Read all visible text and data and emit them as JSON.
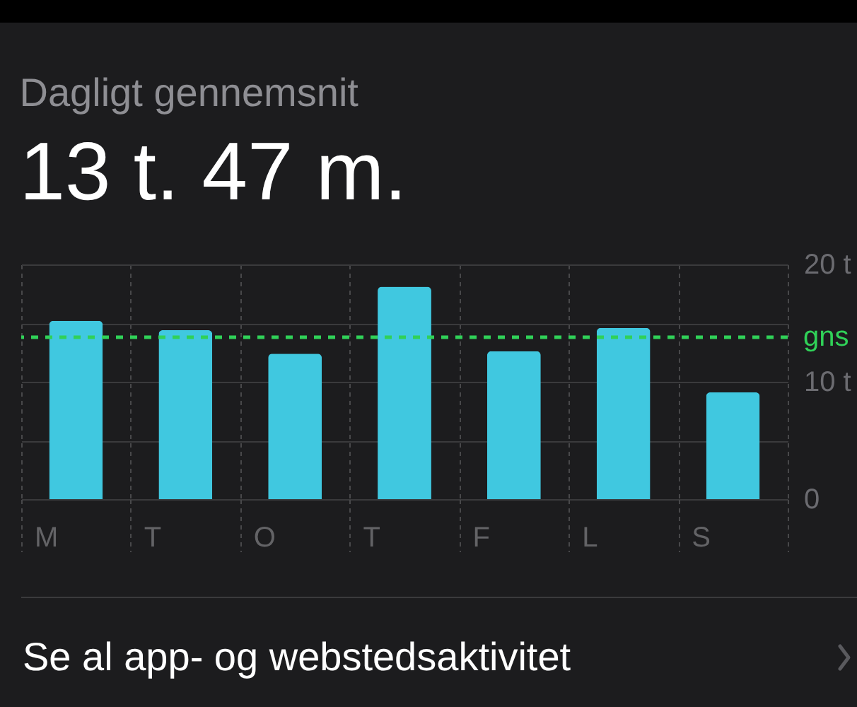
{
  "chart_data": {
    "type": "bar",
    "title": "Dagligt gennemsnit",
    "subtitle": "13 t. 47 m.",
    "categories": [
      "M",
      "T",
      "O",
      "T",
      "F",
      "L",
      "S"
    ],
    "values": [
      15.2,
      14.4,
      12.4,
      18.1,
      12.6,
      14.6,
      9.1
    ],
    "color": "#40c8e0",
    "ylim": [
      0,
      20
    ],
    "yticks": [
      0,
      {
        "value": 5,
        "label": null
      },
      {
        "value": 10,
        "label": "10 t"
      },
      {
        "value": 15,
        "label": null
      },
      {
        "value": 20,
        "label": "20 t"
      }
    ],
    "grid": true,
    "ref_lines": [
      {
        "axis": "y",
        "value": 13.8,
        "label": "gns",
        "color": "#30d158",
        "line_style": "dashed"
      }
    ],
    "annotations": [
      "Se al app- og webstedsaktivitet"
    ]
  }
}
